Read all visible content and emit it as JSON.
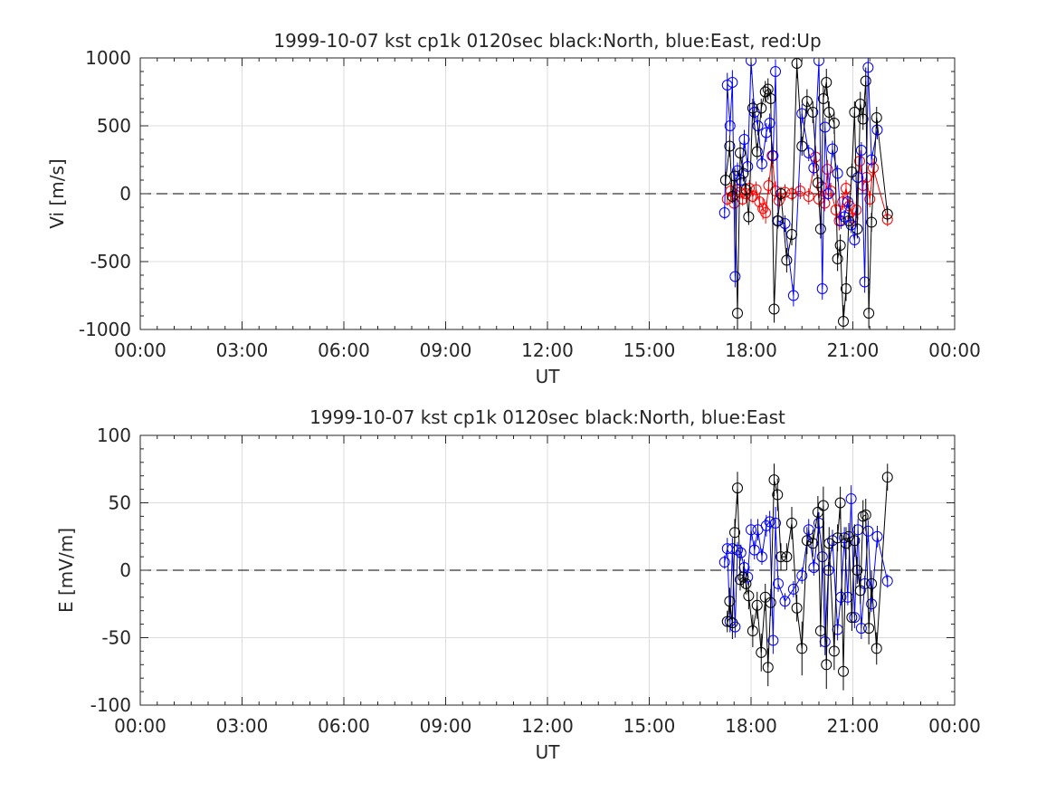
{
  "chart_data": [
    {
      "type": "scatter",
      "title": "1999-10-07 kst cp1k 0120sec black:North, blue:East, red:Up",
      "xlabel": "UT",
      "ylabel": "Vi [m/s]",
      "xlim": [
        0,
        24
      ],
      "ylim": [
        -1000,
        1000
      ],
      "x_unit": "hours UT",
      "xticklabels": [
        "00:00",
        "03:00",
        "06:00",
        "09:00",
        "12:00",
        "15:00",
        "18:00",
        "21:00",
        "00:00"
      ],
      "yticklabels": [
        "-1000",
        "-500",
        "0",
        "500",
        "1000"
      ],
      "grid": true,
      "legend": "none",
      "zero_line": "dashed",
      "series": [
        {
          "color": "#000000",
          "x": [
            17.25,
            17.37,
            17.45,
            17.52,
            17.6,
            17.68,
            17.77,
            17.85,
            17.93,
            18.05,
            18.18,
            18.3,
            18.42,
            18.5,
            18.58,
            18.68,
            18.78,
            18.88,
            19.05,
            19.2,
            19.35,
            19.5,
            19.65,
            19.82,
            19.97,
            20.05,
            20.13,
            20.22,
            20.3,
            20.45,
            20.55,
            20.63,
            20.72,
            20.8,
            20.88,
            20.97,
            21.05,
            21.13,
            21.22,
            21.3,
            21.38,
            21.47,
            21.55,
            21.7,
            22.02
          ],
          "y": [
            100,
            350,
            -20,
            130,
            -880,
            300,
            150,
            30,
            -170,
            630,
            310,
            630,
            750,
            770,
            700,
            -850,
            -200,
            0,
            -490,
            -300,
            960,
            350,
            680,
            600,
            80,
            -260,
            700,
            820,
            600,
            520,
            -480,
            -380,
            -940,
            -700,
            -200,
            160,
            600,
            -260,
            660,
            550,
            830,
            -880,
            -210,
            560,
            -150
          ],
          "err": [
            60,
            80,
            50,
            60,
            120,
            80,
            60,
            50,
            60,
            70,
            60,
            70,
            80,
            80,
            70,
            100,
            60,
            50,
            90,
            80,
            110,
            70,
            90,
            80,
            60,
            70,
            90,
            100,
            80,
            80,
            90,
            80,
            120,
            90,
            70,
            60,
            80,
            70,
            90,
            80,
            100,
            110,
            70,
            80,
            60
          ]
        },
        {
          "color": "#0000ff",
          "x": [
            17.22,
            17.3,
            17.38,
            17.45,
            17.53,
            17.6,
            17.7,
            17.8,
            17.9,
            18.0,
            18.1,
            18.2,
            18.32,
            18.45,
            18.55,
            18.65,
            18.72,
            18.8,
            19.0,
            19.25,
            19.5,
            19.7,
            19.85,
            20.0,
            20.1,
            20.18,
            20.28,
            20.4,
            20.55,
            20.65,
            20.75,
            20.85,
            20.95,
            21.05,
            21.15,
            21.25,
            21.35,
            21.45,
            21.55,
            21.72
          ],
          "y": [
            -140,
            800,
            500,
            820,
            -610,
            170,
            100,
            400,
            200,
            980,
            600,
            500,
            220,
            450,
            520,
            280,
            900,
            -200,
            -220,
            -750,
            590,
            300,
            190,
            980,
            -700,
            490,
            0,
            330,
            150,
            -200,
            -170,
            -60,
            -230,
            -340,
            120,
            320,
            -650,
            930,
            250,
            470
          ],
          "err": [
            50,
            90,
            70,
            90,
            80,
            60,
            50,
            70,
            60,
            100,
            80,
            70,
            60,
            70,
            70,
            60,
            90,
            50,
            60,
            80,
            70,
            60,
            60,
            100,
            80,
            70,
            50,
            60,
            60,
            60,
            50,
            50,
            60,
            60,
            50,
            60,
            80,
            90,
            60,
            70
          ]
        },
        {
          "color": "#ff0000",
          "x": [
            17.3,
            17.4,
            17.5,
            17.58,
            17.67,
            17.75,
            17.85,
            17.95,
            18.05,
            18.15,
            18.25,
            18.35,
            18.43,
            18.52,
            18.62,
            18.72,
            18.82,
            19.0,
            19.2,
            19.45,
            19.7,
            19.9,
            20.0,
            20.08,
            20.17,
            20.25,
            20.35,
            20.5,
            20.6,
            20.7,
            20.8,
            20.9,
            21.0,
            21.1,
            21.2,
            21.3,
            21.4,
            21.5,
            21.6,
            22.02
          ],
          "y": [
            -40,
            20,
            -70,
            30,
            10,
            -40,
            0,
            40,
            -20,
            30,
            -60,
            -110,
            -140,
            60,
            280,
            20,
            -50,
            10,
            0,
            20,
            -20,
            270,
            -40,
            50,
            -70,
            180,
            20,
            -120,
            -200,
            -60,
            40,
            -90,
            -180,
            -120,
            240,
            60,
            120,
            -40,
            190,
            -190
          ],
          "err": [
            50,
            60,
            50,
            60,
            50,
            50,
            60,
            60,
            50,
            60,
            70,
            80,
            80,
            60,
            90,
            70,
            60,
            60,
            50,
            60,
            60,
            80,
            60,
            60,
            60,
            70,
            60,
            70,
            70,
            60,
            60,
            60,
            70,
            60,
            80,
            60,
            70,
            60,
            70,
            50
          ]
        }
      ]
    },
    {
      "type": "scatter",
      "title": "1999-10-07 kst cp1k 0120sec black:North, blue:East",
      "xlabel": "UT",
      "ylabel": "E [mV/m]",
      "xlim": [
        0,
        24
      ],
      "ylim": [
        -100,
        100
      ],
      "x_unit": "hours UT",
      "xticklabels": [
        "00:00",
        "03:00",
        "06:00",
        "09:00",
        "12:00",
        "15:00",
        "18:00",
        "21:00",
        "00:00"
      ],
      "yticklabels": [
        "-100",
        "-50",
        "0",
        "50",
        "100"
      ],
      "grid": true,
      "legend": "none",
      "zero_line": "dashed",
      "series": [
        {
          "color": "#000000",
          "x": [
            17.3,
            17.37,
            17.45,
            17.52,
            17.6,
            17.68,
            17.77,
            17.85,
            17.93,
            18.05,
            18.18,
            18.3,
            18.42,
            18.5,
            18.58,
            18.68,
            18.78,
            18.88,
            19.05,
            19.2,
            19.35,
            19.5,
            19.65,
            19.82,
            19.97,
            20.05,
            20.13,
            20.22,
            20.3,
            20.45,
            20.55,
            20.63,
            20.72,
            20.8,
            20.88,
            20.97,
            21.05,
            21.13,
            21.22,
            21.3,
            21.38,
            21.47,
            21.55,
            21.7,
            22.02
          ],
          "y": [
            -38,
            -23,
            -39,
            28,
            61,
            -7,
            -5,
            -10,
            -19,
            -45,
            -26,
            -61,
            -20,
            -72,
            -24,
            67,
            56,
            10,
            10,
            35,
            -28,
            -58,
            22,
            20,
            43,
            -45,
            48,
            -70,
            20,
            -60,
            24,
            50,
            -75,
            20,
            25,
            -35,
            22,
            0,
            -15,
            40,
            41,
            -43,
            -10,
            -58,
            69
          ],
          "err": [
            8,
            10,
            12,
            10,
            12,
            8,
            8,
            8,
            10,
            12,
            10,
            14,
            10,
            14,
            10,
            12,
            12,
            10,
            10,
            12,
            10,
            20,
            10,
            10,
            12,
            12,
            14,
            18,
            12,
            14,
            10,
            12,
            14,
            12,
            10,
            10,
            12,
            10,
            10,
            12,
            12,
            12,
            10,
            12,
            10
          ]
        },
        {
          "color": "#0000ff",
          "x": [
            17.22,
            17.3,
            17.38,
            17.45,
            17.53,
            17.6,
            17.7,
            17.8,
            17.9,
            18.0,
            18.1,
            18.2,
            18.32,
            18.45,
            18.55,
            18.65,
            18.72,
            18.8,
            19.0,
            19.25,
            19.5,
            19.7,
            19.85,
            20.0,
            20.1,
            20.18,
            20.28,
            20.4,
            20.55,
            20.65,
            20.75,
            20.85,
            20.95,
            21.05,
            21.15,
            21.25,
            21.35,
            21.45,
            21.55,
            21.72,
            22.02
          ],
          "y": [
            6,
            16,
            -38,
            16,
            -42,
            15,
            13,
            2,
            -5,
            30,
            15,
            30,
            10,
            33,
            36,
            -52,
            35,
            -10,
            -23,
            -14,
            -4,
            30,
            2,
            35,
            10,
            -53,
            0,
            22,
            -44,
            -20,
            24,
            -20,
            53,
            -35,
            30,
            -43,
            -10,
            29,
            -25,
            25,
            -8
          ],
          "err": [
            5,
            8,
            8,
            8,
            8,
            6,
            6,
            6,
            6,
            8,
            7,
            8,
            6,
            8,
            8,
            10,
            12,
            6,
            6,
            6,
            6,
            8,
            6,
            8,
            6,
            10,
            6,
            8,
            8,
            6,
            8,
            6,
            10,
            8,
            8,
            8,
            6,
            8,
            6,
            8,
            5
          ]
        }
      ]
    }
  ]
}
